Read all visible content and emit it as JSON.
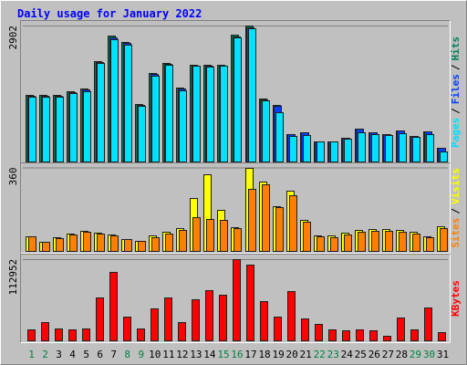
{
  "chart_data": {
    "type": "bar",
    "title": "Daily usage for January 2022",
    "categories": [
      "1",
      "2",
      "3",
      "4",
      "5",
      "6",
      "7",
      "8",
      "9",
      "10",
      "11",
      "12",
      "13",
      "14",
      "15",
      "16",
      "17",
      "18",
      "19",
      "20",
      "21",
      "22",
      "23",
      "24",
      "25",
      "26",
      "27",
      "28",
      "29",
      "30",
      "31"
    ],
    "category_colors": [
      "#008040",
      "#008040",
      "#000000",
      "#000000",
      "#000000",
      "#000000",
      "#000000",
      "#008040",
      "#008040",
      "#000000",
      "#000000",
      "#000000",
      "#000000",
      "#000000",
      "#008040",
      "#008040",
      "#000000",
      "#000000",
      "#000000",
      "#000000",
      "#000000",
      "#008040",
      "#008040",
      "#000000",
      "#000000",
      "#000000",
      "#000000",
      "#000000",
      "#008040",
      "#008040",
      "#000000"
    ],
    "panels": [
      {
        "ylim": [
          0,
          2960
        ],
        "yticks": [
          2902
        ],
        "legend_separator": "/",
        "series": [
          {
            "name": "Hits",
            "color": "#00805c",
            "values": [
              1420,
              1420,
              1420,
              1500,
              1560,
              2150,
              2680,
              2560,
              1220,
              1890,
              2110,
              1580,
              2070,
              2070,
              2070,
              2700,
              2902,
              1340,
              1200,
              590,
              630,
              430,
              430,
              510,
              710,
              630,
              590,
              670,
              550,
              650,
              300
            ]
          },
          {
            "name": "Files",
            "color": "#0040ff",
            "values": [
              1400,
              1400,
              1400,
              1480,
              1540,
              2120,
              2650,
              2530,
              1200,
              1870,
              2080,
              1560,
              2050,
              2040,
              2050,
              2670,
              2870,
              1320,
              1180,
              580,
              620,
              420,
              420,
              500,
              700,
              620,
              580,
              660,
              540,
              640,
              290
            ]
          },
          {
            "name": "Pages",
            "color": "#00e0ff",
            "values": [
              1390,
              1380,
              1390,
              1460,
              1500,
              2100,
              2600,
              2500,
              1190,
              1840,
              2060,
              1520,
              2040,
              2030,
              2040,
              2640,
              2840,
              1300,
              1060,
              540,
              570,
              420,
              420,
              480,
              620,
              580,
              560,
              600,
              520,
              590,
              220
            ]
          }
        ]
      },
      {
        "ylim": [
          0,
          370
        ],
        "yticks": [
          360
        ],
        "legend_separator": "/",
        "series": [
          {
            "name": "Visits",
            "color": "#ffff00",
            "values": [
              63,
              39,
              59,
              74,
              86,
              78,
              70,
              51,
              43,
              66,
              82,
              98,
              228,
              330,
              177,
              102,
              360,
              300,
              192,
              260,
              133,
              66,
              66,
              78,
              90,
              94,
              94,
              90,
              82,
              63,
              106
            ]
          },
          {
            "name": "Sites",
            "color": "#ff8000",
            "values": [
              63,
              39,
              55,
              70,
              82,
              74,
              66,
              51,
              43,
              59,
              74,
              90,
              145,
              137,
              133,
              98,
              267,
              287,
              188,
              240,
              125,
              63,
              59,
              70,
              82,
              86,
              86,
              82,
              74,
              59,
              98
            ]
          }
        ]
      },
      {
        "ylim": [
          0,
          116500
        ],
        "yticks": [
          112952
        ],
        "legend_separator": "/",
        "series": [
          {
            "name": "KBytes",
            "color": "#ff0000",
            "values": [
              15200,
              25300,
              16500,
              15200,
              16500,
              59500,
              95000,
              33000,
              16500,
              44300,
              59500,
              25300,
              57000,
              69600,
              63300,
              112952,
              105000,
              54400,
              33000,
              68400,
              30400,
              22800,
              15200,
              13900,
              15200,
              13900,
              6300,
              31600,
              15200,
              45600,
              11400
            ]
          }
        ]
      }
    ]
  }
}
